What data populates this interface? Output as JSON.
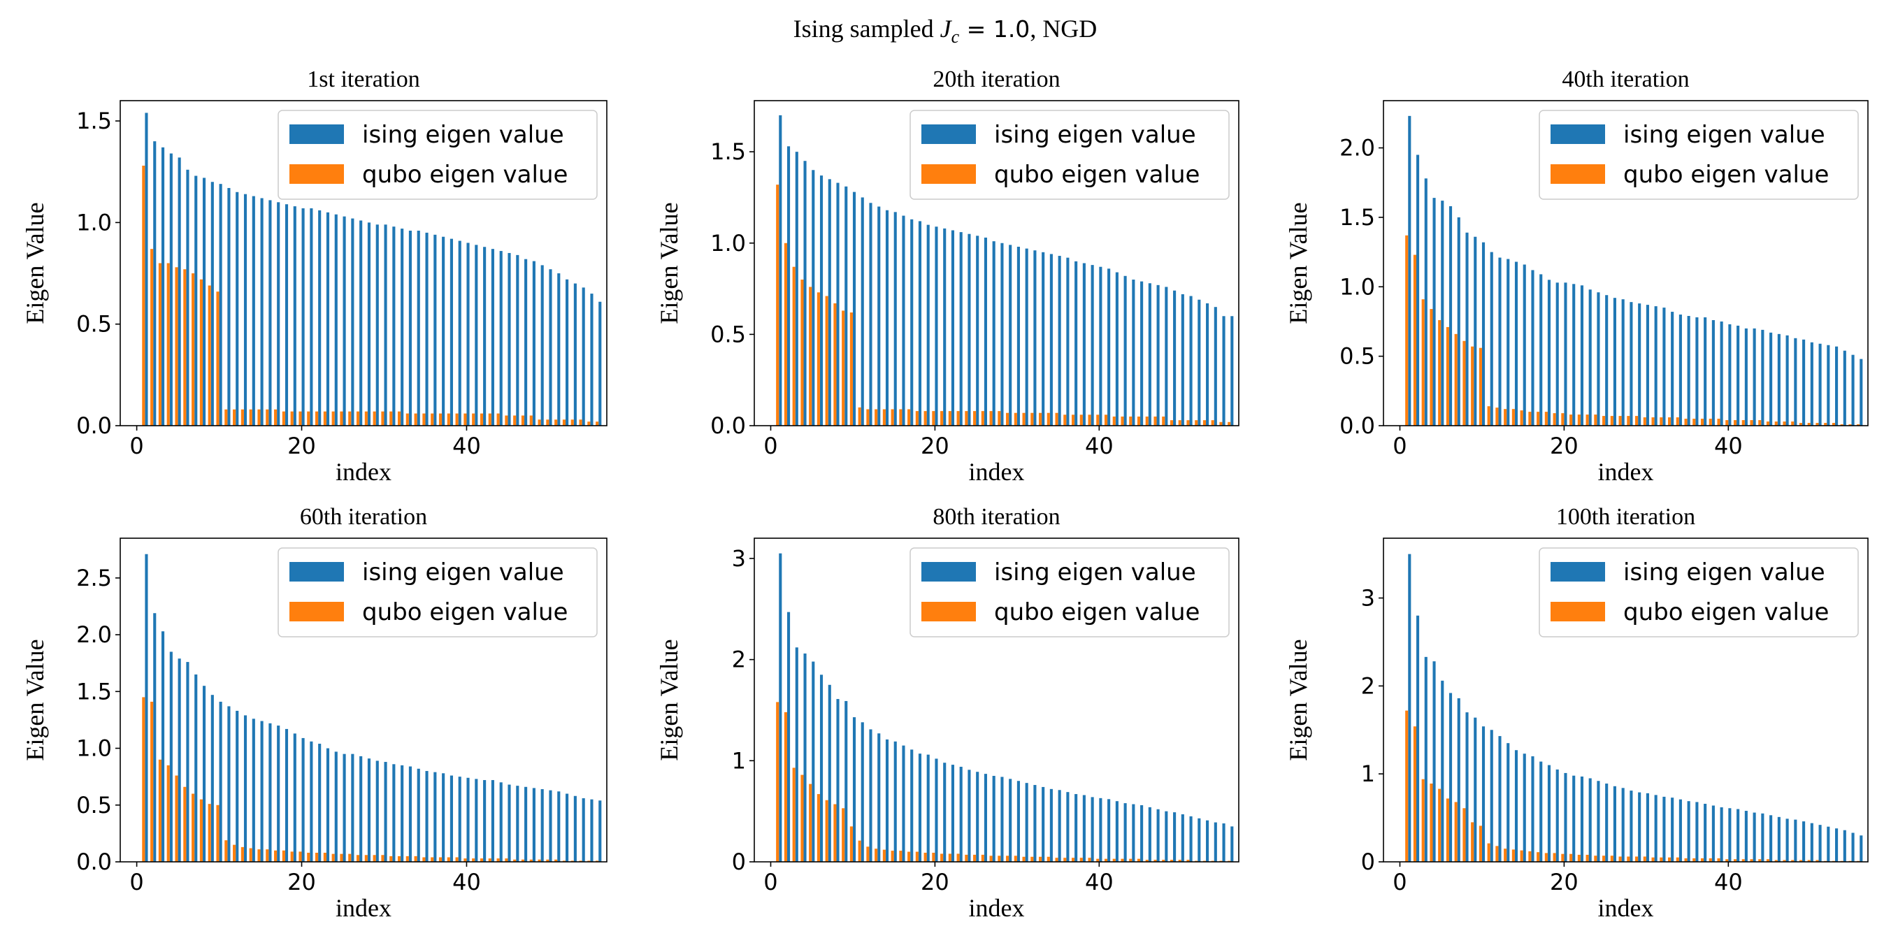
{
  "figure_title": {
    "prefix": "Ising sampled ",
    "symbol": "J",
    "subscript": "c",
    "equals_value": " = 1.0",
    "suffix": ", NGD"
  },
  "colors": {
    "ising": "#1f77b4",
    "qubo": "#ff7f0e",
    "axes": "#000000"
  },
  "chart_data": [
    {
      "type": "bar",
      "title": "1st iteration",
      "xlabel": "index",
      "ylabel": "Eigen Value",
      "xlim": [
        -2,
        57
      ],
      "ylim": [
        0,
        1.6
      ],
      "xticks": [
        0,
        20,
        40
      ],
      "xtick_labels": [
        "0",
        "20",
        "40"
      ],
      "yticks": [
        0,
        0.5,
        1.0,
        1.5
      ],
      "ytick_labels": [
        "0.0",
        "0.5",
        "1.0",
        "1.5"
      ],
      "legend": {
        "placement": "top-right",
        "entries": [
          "ising eigen value",
          "qubo eigen value"
        ]
      },
      "series": [
        {
          "name": "ising eigen value",
          "values": [
            1.54,
            1.4,
            1.37,
            1.34,
            1.32,
            1.26,
            1.23,
            1.22,
            1.2,
            1.19,
            1.17,
            1.15,
            1.14,
            1.13,
            1.12,
            1.11,
            1.1,
            1.09,
            1.08,
            1.07,
            1.07,
            1.06,
            1.05,
            1.04,
            1.03,
            1.02,
            1.01,
            1.0,
            0.99,
            0.99,
            0.98,
            0.97,
            0.96,
            0.96,
            0.95,
            0.94,
            0.93,
            0.92,
            0.91,
            0.9,
            0.89,
            0.88,
            0.87,
            0.86,
            0.85,
            0.84,
            0.82,
            0.81,
            0.79,
            0.77,
            0.75,
            0.72,
            0.7,
            0.68,
            0.65,
            0.61
          ]
        },
        {
          "name": "qubo eigen value",
          "values": [
            1.28,
            0.87,
            0.8,
            0.8,
            0.78,
            0.77,
            0.75,
            0.72,
            0.69,
            0.66,
            0.08,
            0.08,
            0.08,
            0.08,
            0.08,
            0.08,
            0.08,
            0.07,
            0.07,
            0.07,
            0.07,
            0.07,
            0.07,
            0.07,
            0.07,
            0.07,
            0.07,
            0.07,
            0.07,
            0.07,
            0.07,
            0.07,
            0.06,
            0.06,
            0.06,
            0.06,
            0.06,
            0.06,
            0.06,
            0.06,
            0.06,
            0.06,
            0.06,
            0.06,
            0.05,
            0.05,
            0.05,
            0.05,
            0.03,
            0.03,
            0.03,
            0.03,
            0.03,
            0.03,
            0.02,
            0.02
          ]
        }
      ]
    },
    {
      "type": "bar",
      "title": "20th iteration",
      "xlabel": "index",
      "ylabel": "Eigen Value",
      "xlim": [
        -2,
        57
      ],
      "ylim": [
        0,
        1.78
      ],
      "xticks": [
        0,
        20,
        40
      ],
      "xtick_labels": [
        "0",
        "20",
        "40"
      ],
      "yticks": [
        0,
        0.5,
        1.0,
        1.5
      ],
      "ytick_labels": [
        "0.0",
        "0.5",
        "1.0",
        "1.5"
      ],
      "legend": {
        "placement": "top-right",
        "entries": [
          "ising eigen value",
          "qubo eigen value"
        ]
      },
      "series": [
        {
          "name": "ising eigen value",
          "values": [
            1.7,
            1.53,
            1.5,
            1.45,
            1.4,
            1.37,
            1.35,
            1.33,
            1.31,
            1.28,
            1.25,
            1.22,
            1.2,
            1.18,
            1.17,
            1.15,
            1.13,
            1.12,
            1.1,
            1.09,
            1.08,
            1.07,
            1.06,
            1.05,
            1.04,
            1.03,
            1.01,
            1.0,
            0.99,
            0.98,
            0.97,
            0.96,
            0.95,
            0.94,
            0.93,
            0.92,
            0.9,
            0.89,
            0.88,
            0.87,
            0.86,
            0.84,
            0.82,
            0.8,
            0.79,
            0.78,
            0.77,
            0.76,
            0.74,
            0.72,
            0.71,
            0.69,
            0.67,
            0.65,
            0.6,
            0.6
          ]
        },
        {
          "name": "qubo eigen value",
          "values": [
            1.32,
            1.0,
            0.87,
            0.8,
            0.76,
            0.73,
            0.71,
            0.67,
            0.63,
            0.62,
            0.1,
            0.09,
            0.09,
            0.09,
            0.09,
            0.09,
            0.09,
            0.08,
            0.08,
            0.08,
            0.08,
            0.08,
            0.08,
            0.08,
            0.08,
            0.08,
            0.08,
            0.08,
            0.07,
            0.07,
            0.07,
            0.07,
            0.07,
            0.07,
            0.07,
            0.06,
            0.06,
            0.06,
            0.06,
            0.06,
            0.06,
            0.05,
            0.05,
            0.05,
            0.05,
            0.05,
            0.05,
            0.05,
            0.03,
            0.03,
            0.03,
            0.03,
            0.03,
            0.03,
            0.02,
            0.02
          ]
        }
      ]
    },
    {
      "type": "bar",
      "title": "40th iteration",
      "xlabel": "index",
      "ylabel": "Eigen Value",
      "xlim": [
        -2,
        57
      ],
      "ylim": [
        0,
        2.34
      ],
      "xticks": [
        0,
        20,
        40
      ],
      "xtick_labels": [
        "0",
        "20",
        "40"
      ],
      "yticks": [
        0,
        0.5,
        1.0,
        1.5,
        2.0
      ],
      "ytick_labels": [
        "0.0",
        "0.5",
        "1.0",
        "1.5",
        "2.0"
      ],
      "legend": {
        "placement": "top-right",
        "entries": [
          "ising eigen value",
          "qubo eigen value"
        ]
      },
      "series": [
        {
          "name": "ising eigen value",
          "values": [
            2.23,
            1.95,
            1.78,
            1.64,
            1.62,
            1.58,
            1.5,
            1.39,
            1.36,
            1.32,
            1.25,
            1.21,
            1.2,
            1.18,
            1.16,
            1.12,
            1.09,
            1.05,
            1.03,
            1.03,
            1.02,
            1.01,
            0.98,
            0.96,
            0.94,
            0.92,
            0.91,
            0.89,
            0.88,
            0.87,
            0.86,
            0.85,
            0.82,
            0.8,
            0.79,
            0.78,
            0.78,
            0.76,
            0.75,
            0.73,
            0.72,
            0.7,
            0.7,
            0.69,
            0.67,
            0.66,
            0.65,
            0.63,
            0.62,
            0.6,
            0.59,
            0.58,
            0.57,
            0.54,
            0.51,
            0.48
          ]
        },
        {
          "name": "qubo eigen value",
          "values": [
            1.37,
            1.23,
            0.91,
            0.84,
            0.76,
            0.71,
            0.66,
            0.61,
            0.57,
            0.56,
            0.14,
            0.13,
            0.12,
            0.12,
            0.11,
            0.1,
            0.1,
            0.1,
            0.09,
            0.09,
            0.08,
            0.08,
            0.08,
            0.08,
            0.07,
            0.07,
            0.07,
            0.07,
            0.07,
            0.06,
            0.06,
            0.06,
            0.06,
            0.06,
            0.05,
            0.05,
            0.05,
            0.05,
            0.05,
            0.04,
            0.04,
            0.04,
            0.04,
            0.04,
            0.03,
            0.03,
            0.03,
            0.03,
            0.02,
            0.02,
            0.02,
            0.02,
            0.02,
            0.01,
            0.01,
            0.01
          ]
        }
      ]
    },
    {
      "type": "bar",
      "title": "60th iteration",
      "xlabel": "index",
      "ylabel": "Eigen Value",
      "xlim": [
        -2,
        57
      ],
      "ylim": [
        0,
        2.85
      ],
      "xticks": [
        0,
        20,
        40
      ],
      "xtick_labels": [
        "0",
        "20",
        "40"
      ],
      "yticks": [
        0,
        0.5,
        1.0,
        1.5,
        2.0,
        2.5
      ],
      "ytick_labels": [
        "0.0",
        "0.5",
        "1.0",
        "1.5",
        "2.0",
        "2.5"
      ],
      "legend": {
        "placement": "top-right",
        "entries": [
          "ising eigen value",
          "qubo eigen value"
        ]
      },
      "series": [
        {
          "name": "ising eigen value",
          "values": [
            2.71,
            2.19,
            2.03,
            1.85,
            1.79,
            1.76,
            1.65,
            1.55,
            1.47,
            1.41,
            1.37,
            1.33,
            1.29,
            1.26,
            1.24,
            1.22,
            1.2,
            1.17,
            1.13,
            1.09,
            1.06,
            1.04,
            1.0,
            0.97,
            0.95,
            0.95,
            0.93,
            0.91,
            0.89,
            0.88,
            0.86,
            0.85,
            0.84,
            0.82,
            0.8,
            0.79,
            0.78,
            0.76,
            0.75,
            0.74,
            0.73,
            0.72,
            0.72,
            0.7,
            0.68,
            0.67,
            0.66,
            0.65,
            0.64,
            0.63,
            0.62,
            0.6,
            0.58,
            0.56,
            0.55,
            0.54
          ]
        },
        {
          "name": "qubo eigen value",
          "values": [
            1.45,
            1.41,
            0.9,
            0.85,
            0.76,
            0.66,
            0.6,
            0.55,
            0.51,
            0.5,
            0.19,
            0.15,
            0.13,
            0.12,
            0.11,
            0.11,
            0.1,
            0.1,
            0.09,
            0.09,
            0.08,
            0.08,
            0.08,
            0.07,
            0.07,
            0.07,
            0.06,
            0.06,
            0.06,
            0.06,
            0.05,
            0.05,
            0.05,
            0.05,
            0.04,
            0.04,
            0.04,
            0.04,
            0.04,
            0.03,
            0.03,
            0.03,
            0.03,
            0.03,
            0.03,
            0.02,
            0.02,
            0.02,
            0.02,
            0.02,
            0.02,
            0.01,
            0.01,
            0.01,
            0.01,
            0.01
          ]
        }
      ]
    },
    {
      "type": "bar",
      "title": "80th iteration",
      "xlabel": "index",
      "ylabel": "Eigen Value",
      "xlim": [
        -2,
        57
      ],
      "ylim": [
        0,
        3.2
      ],
      "xticks": [
        0,
        20,
        40
      ],
      "xtick_labels": [
        "0",
        "20",
        "40"
      ],
      "yticks": [
        0,
        1,
        2,
        3
      ],
      "ytick_labels": [
        "0",
        "1",
        "2",
        "3"
      ],
      "legend": {
        "placement": "top-right",
        "entries": [
          "ising eigen value",
          "qubo eigen value"
        ]
      },
      "series": [
        {
          "name": "ising eigen value",
          "values": [
            3.05,
            2.47,
            2.12,
            2.06,
            1.98,
            1.85,
            1.75,
            1.61,
            1.59,
            1.43,
            1.38,
            1.31,
            1.27,
            1.21,
            1.19,
            1.15,
            1.11,
            1.07,
            1.06,
            1.02,
            0.98,
            0.96,
            0.94,
            0.91,
            0.89,
            0.87,
            0.85,
            0.84,
            0.82,
            0.8,
            0.78,
            0.76,
            0.74,
            0.72,
            0.71,
            0.69,
            0.67,
            0.66,
            0.64,
            0.63,
            0.62,
            0.6,
            0.58,
            0.57,
            0.56,
            0.54,
            0.52,
            0.5,
            0.49,
            0.47,
            0.45,
            0.43,
            0.41,
            0.39,
            0.38,
            0.35
          ]
        },
        {
          "name": "qubo eigen value",
          "values": [
            1.58,
            1.48,
            0.93,
            0.86,
            0.77,
            0.67,
            0.61,
            0.57,
            0.53,
            0.35,
            0.21,
            0.15,
            0.13,
            0.12,
            0.11,
            0.11,
            0.1,
            0.1,
            0.09,
            0.09,
            0.08,
            0.08,
            0.08,
            0.07,
            0.07,
            0.07,
            0.06,
            0.06,
            0.06,
            0.06,
            0.05,
            0.05,
            0.05,
            0.05,
            0.04,
            0.04,
            0.04,
            0.04,
            0.04,
            0.03,
            0.03,
            0.03,
            0.03,
            0.03,
            0.03,
            0.02,
            0.02,
            0.02,
            0.02,
            0.02,
            0.02,
            0.01,
            0.01,
            0.01,
            0.01,
            0.01
          ]
        }
      ]
    },
    {
      "type": "bar",
      "title": "100th iteration",
      "xlabel": "index",
      "ylabel": "Eigen Value",
      "xlim": [
        -2,
        57
      ],
      "ylim": [
        0,
        3.68
      ],
      "xticks": [
        0,
        20,
        40
      ],
      "xtick_labels": [
        "0",
        "20",
        "40"
      ],
      "yticks": [
        0,
        1,
        2,
        3
      ],
      "ytick_labels": [
        "0",
        "1",
        "2",
        "3"
      ],
      "legend": {
        "placement": "top-right",
        "entries": [
          "ising eigen value",
          "qubo eigen value"
        ]
      },
      "series": [
        {
          "name": "ising eigen value",
          "values": [
            3.5,
            2.8,
            2.33,
            2.28,
            2.06,
            1.92,
            1.86,
            1.7,
            1.64,
            1.54,
            1.5,
            1.43,
            1.35,
            1.27,
            1.23,
            1.2,
            1.14,
            1.1,
            1.05,
            1.01,
            0.98,
            0.97,
            0.95,
            0.92,
            0.89,
            0.86,
            0.84,
            0.81,
            0.79,
            0.78,
            0.76,
            0.74,
            0.73,
            0.71,
            0.69,
            0.68,
            0.66,
            0.64,
            0.62,
            0.61,
            0.6,
            0.58,
            0.56,
            0.55,
            0.53,
            0.51,
            0.49,
            0.48,
            0.46,
            0.44,
            0.42,
            0.4,
            0.38,
            0.36,
            0.33,
            0.3
          ]
        },
        {
          "name": "qubo eigen value",
          "values": [
            1.72,
            1.54,
            0.94,
            0.89,
            0.83,
            0.72,
            0.68,
            0.61,
            0.45,
            0.41,
            0.21,
            0.18,
            0.15,
            0.14,
            0.13,
            0.12,
            0.11,
            0.1,
            0.1,
            0.09,
            0.09,
            0.08,
            0.08,
            0.07,
            0.07,
            0.07,
            0.06,
            0.06,
            0.06,
            0.06,
            0.05,
            0.05,
            0.05,
            0.05,
            0.04,
            0.04,
            0.04,
            0.04,
            0.04,
            0.03,
            0.03,
            0.03,
            0.03,
            0.03,
            0.03,
            0.02,
            0.02,
            0.02,
            0.02,
            0.02,
            0.02,
            0.01,
            0.01,
            0.01,
            0.01,
            0.01
          ]
        }
      ]
    }
  ]
}
